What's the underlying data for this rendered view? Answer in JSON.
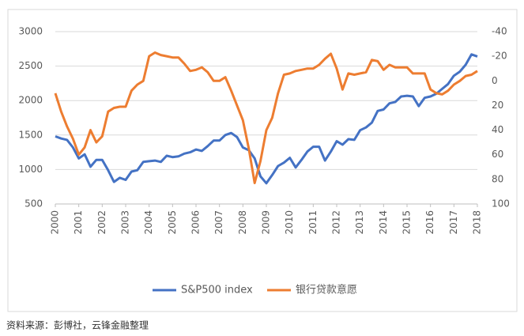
{
  "chart_data": {
    "type": "line",
    "x": [
      2000,
      2000.25,
      2000.5,
      2000.75,
      2001,
      2001.25,
      2001.5,
      2001.75,
      2002,
      2002.25,
      2002.5,
      2002.75,
      2003,
      2003.25,
      2003.5,
      2003.75,
      2004,
      2004.25,
      2004.5,
      2004.75,
      2005,
      2005.25,
      2005.5,
      2005.75,
      2006,
      2006.25,
      2006.5,
      2006.75,
      2007,
      2007.25,
      2007.5,
      2007.75,
      2008,
      2008.25,
      2008.5,
      2008.75,
      2009,
      2009.25,
      2009.5,
      2009.75,
      2010,
      2010.25,
      2010.5,
      2010.75,
      2011,
      2011.25,
      2011.5,
      2011.75,
      2012,
      2012.25,
      2012.5,
      2012.75,
      2013,
      2013.25,
      2013.5,
      2013.75,
      2014,
      2014.25,
      2014.5,
      2014.75,
      2015,
      2015.25,
      2015.5,
      2015.75,
      2016,
      2016.25,
      2016.5,
      2016.75,
      2017,
      2017.25,
      2017.5,
      2017.75,
      2018
    ],
    "series": [
      {
        "name": "S&P500 index",
        "color": "#4472c4",
        "values": [
          1480,
          1450,
          1430,
          1320,
          1160,
          1220,
          1040,
          1140,
          1140,
          990,
          820,
          880,
          850,
          970,
          990,
          1110,
          1120,
          1130,
          1110,
          1200,
          1180,
          1190,
          1230,
          1250,
          1290,
          1270,
          1340,
          1420,
          1420,
          1500,
          1530,
          1470,
          1320,
          1280,
          1160,
          900,
          800,
          920,
          1050,
          1100,
          1170,
          1030,
          1140,
          1260,
          1330,
          1330,
          1130,
          1260,
          1410,
          1360,
          1440,
          1430,
          1570,
          1610,
          1680,
          1850,
          1870,
          1960,
          1980,
          2060,
          2070,
          2060,
          1920,
          2040,
          2060,
          2100,
          2170,
          2240,
          2360,
          2420,
          2520,
          2670,
          2640
        ]
      },
      {
        "name": "银行贷款意愿",
        "color": "#ed7d31",
        "axis": "y2",
        "values": [
          10,
          25,
          37,
          47,
          60,
          54,
          40,
          50,
          45,
          25,
          22,
          21,
          21,
          8,
          3,
          0,
          -20,
          -23,
          -21,
          -20,
          -19,
          -19,
          -14,
          -8,
          -9,
          -11,
          -7,
          0,
          0,
          -3,
          8,
          20,
          32,
          55,
          83,
          65,
          40,
          30,
          10,
          -5,
          -6,
          -8,
          -9,
          -10,
          -10,
          -13,
          -18,
          -22,
          -10,
          7,
          -6,
          -5,
          -6,
          -7,
          -17,
          -16,
          -9,
          -13,
          -11,
          -11,
          -11,
          -6,
          -6,
          -6,
          7,
          10,
          11,
          8,
          3,
          0,
          -4,
          -5,
          -8
        ]
      }
    ],
    "xlim": [
      2000,
      2018
    ],
    "xticks": [
      2000,
      2001,
      2002,
      2003,
      2004,
      2005,
      2006,
      2007,
      2008,
      2009,
      2010,
      2011,
      2012,
      2013,
      2014,
      2015,
      2016,
      2017,
      2018
    ],
    "ylim": [
      500,
      3000
    ],
    "yticks": [
      500,
      1000,
      1500,
      2000,
      2500,
      3000
    ],
    "y2lim": [
      100,
      -40
    ],
    "y2ticks": [
      100,
      80,
      60,
      40,
      20,
      0,
      -20,
      -40
    ],
    "grid": true,
    "legend": "bottom",
    "source": "资料来源：彭博社，云锋金融整理"
  }
}
